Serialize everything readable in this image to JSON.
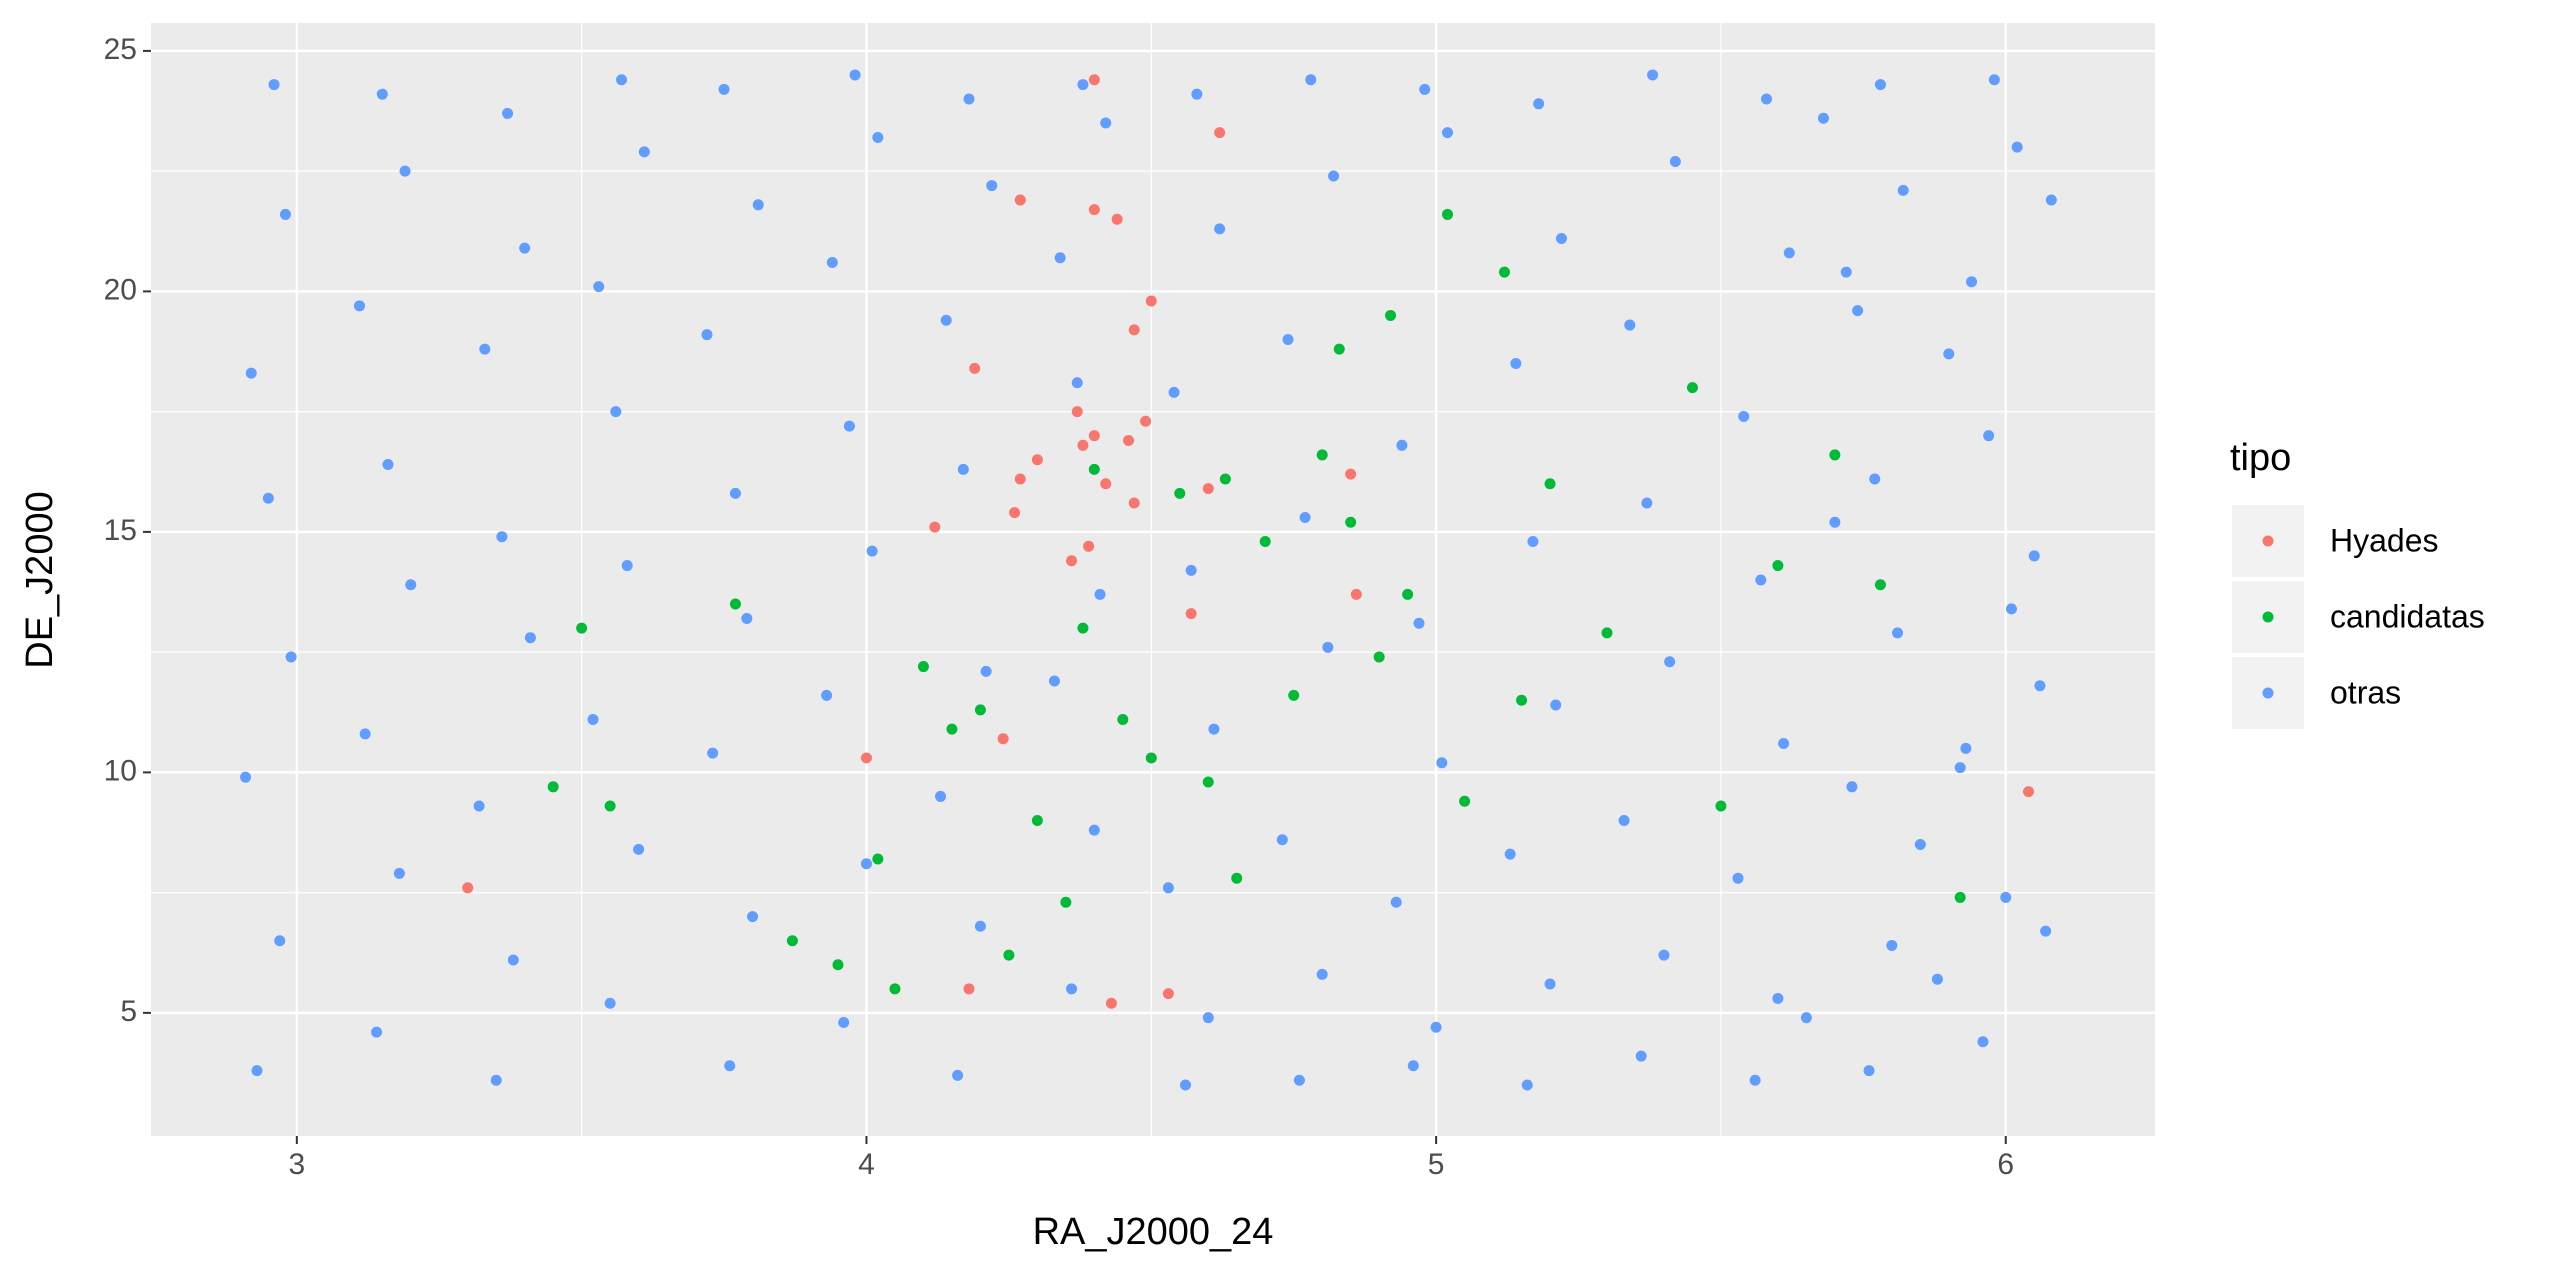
{
  "chart_data": {
    "type": "scatter",
    "x_label": "RA_J2000_24",
    "y_label": "DE_J2000",
    "legend_title": "tipo",
    "legend_position": "right",
    "grid": true,
    "xlim": [
      2.744,
      6.262
    ],
    "ylim": [
      2.44,
      25.58
    ],
    "xticks": [
      3,
      4,
      5,
      6
    ],
    "yticks": [
      5,
      10,
      15,
      20,
      25
    ],
    "series": [
      {
        "name": "Hyades",
        "color": "#F8766D",
        "x": [
          4.4,
          4.62,
          4.27,
          4.4,
          4.44,
          4.5,
          4.47,
          4.19,
          4.37,
          4.4,
          4.46,
          4.38,
          4.3,
          4.27,
          4.42,
          4.47,
          4.6,
          4.26,
          4.12,
          4.36,
          4.39,
          4.57,
          4.86,
          4.0,
          4.24,
          3.3,
          4.18,
          4.43,
          4.53,
          6.04,
          4.85,
          4.49
        ],
        "values": [
          24.4,
          23.3,
          21.9,
          21.7,
          21.5,
          19.8,
          19.2,
          18.4,
          17.5,
          17.0,
          16.9,
          16.8,
          16.5,
          16.1,
          16.0,
          15.6,
          15.9,
          15.4,
          15.1,
          14.4,
          14.7,
          13.3,
          13.7,
          10.3,
          10.7,
          7.6,
          5.5,
          5.2,
          5.4,
          9.6,
          16.2,
          17.3
        ]
      },
      {
        "name": "candidatas",
        "color": "#00BA38",
        "x": [
          3.45,
          3.5,
          3.55,
          3.77,
          3.87,
          3.95,
          4.02,
          4.05,
          4.1,
          4.15,
          4.2,
          4.25,
          4.3,
          4.35,
          4.38,
          4.4,
          4.45,
          4.5,
          4.55,
          4.6,
          4.63,
          4.65,
          4.7,
          4.75,
          4.8,
          4.83,
          4.85,
          4.9,
          4.92,
          4.95,
          5.02,
          5.05,
          5.12,
          5.15,
          5.2,
          5.3,
          5.45,
          5.5,
          5.6,
          5.7,
          5.78,
          5.92
        ],
        "values": [
          9.7,
          13.0,
          9.3,
          13.5,
          6.5,
          6.0,
          8.2,
          5.5,
          12.2,
          10.9,
          11.3,
          6.2,
          9.0,
          7.3,
          13.0,
          16.3,
          11.1,
          10.3,
          15.8,
          9.8,
          16.1,
          7.8,
          14.8,
          11.6,
          16.6,
          18.8,
          15.2,
          12.4,
          19.5,
          13.7,
          21.6,
          9.4,
          20.4,
          11.5,
          16.0,
          12.9,
          18.0,
          9.3,
          14.3,
          16.6,
          13.9,
          7.4
        ]
      },
      {
        "name": "otras",
        "color": "#619CFF",
        "x": [
          2.93,
          2.97,
          2.91,
          2.99,
          2.95,
          2.92,
          2.98,
          2.96,
          3.14,
          3.18,
          3.12,
          3.2,
          3.16,
          3.11,
          3.19,
          3.15,
          3.35,
          3.38,
          3.32,
          3.41,
          3.36,
          3.33,
          3.4,
          3.37,
          3.55,
          3.6,
          3.52,
          3.58,
          3.56,
          3.53,
          3.61,
          3.57,
          3.76,
          3.8,
          3.73,
          3.79,
          3.77,
          3.72,
          3.81,
          3.75,
          3.96,
          4.0,
          3.93,
          4.01,
          3.97,
          3.94,
          4.02,
          3.98,
          4.16,
          4.2,
          4.13,
          4.21,
          4.17,
          4.14,
          4.22,
          4.18,
          4.36,
          4.4,
          4.33,
          4.41,
          4.37,
          4.34,
          4.42,
          4.38,
          4.56,
          4.6,
          4.53,
          4.61,
          4.57,
          4.54,
          4.62,
          4.58,
          4.76,
          4.8,
          4.73,
          4.81,
          4.77,
          4.74,
          4.82,
          4.78,
          4.96,
          5.0,
          4.93,
          5.01,
          4.97,
          4.94,
          5.02,
          4.98,
          5.16,
          5.2,
          5.13,
          5.21,
          5.17,
          5.14,
          5.22,
          5.18,
          5.36,
          5.4,
          5.33,
          5.41,
          5.37,
          5.34,
          5.42,
          5.38,
          5.56,
          5.6,
          5.53,
          5.61,
          5.57,
          5.54,
          5.62,
          5.58,
          5.76,
          5.8,
          5.73,
          5.81,
          5.77,
          5.74,
          5.82,
          5.78,
          5.96,
          6.0,
          5.93,
          6.01,
          5.97,
          5.94,
          6.02,
          5.98,
          5.65,
          5.85,
          6.06,
          5.7,
          5.9,
          6.08,
          5.68,
          5.88,
          6.05,
          5.72,
          5.92,
          6.07
        ],
        "values": [
          3.8,
          6.5,
          9.9,
          12.4,
          15.7,
          18.3,
          21.6,
          24.3,
          4.6,
          7.9,
          10.8,
          13.9,
          16.4,
          19.7,
          22.5,
          24.1,
          3.6,
          6.1,
          9.3,
          12.8,
          14.9,
          18.8,
          20.9,
          23.7,
          5.2,
          8.4,
          11.1,
          14.3,
          17.5,
          20.1,
          22.9,
          24.4,
          3.9,
          7.0,
          10.4,
          13.2,
          15.8,
          19.1,
          21.8,
          24.2,
          4.8,
          8.1,
          11.6,
          14.6,
          17.2,
          20.6,
          23.2,
          24.5,
          3.7,
          6.8,
          9.5,
          12.1,
          16.3,
          19.4,
          22.2,
          24.0,
          5.5,
          8.8,
          11.9,
          13.7,
          18.1,
          20.7,
          23.5,
          24.3,
          3.5,
          4.9,
          7.6,
          10.9,
          14.2,
          17.9,
          21.3,
          24.1,
          3.6,
          5.8,
          8.6,
          12.6,
          15.3,
          19.0,
          22.4,
          24.4,
          3.9,
          4.7,
          7.3,
          10.2,
          13.1,
          16.8,
          23.3,
          24.2,
          3.5,
          5.6,
          8.3,
          11.4,
          14.8,
          18.5,
          21.1,
          23.9,
          4.1,
          6.2,
          9.0,
          12.3,
          15.6,
          19.3,
          22.7,
          24.5,
          3.6,
          5.3,
          7.8,
          10.6,
          14.0,
          17.4,
          20.8,
          24.0,
          3.8,
          6.4,
          9.7,
          12.9,
          16.1,
          19.6,
          22.1,
          24.3,
          4.4,
          7.4,
          10.5,
          13.4,
          17.0,
          20.2,
          23.0,
          24.4,
          4.9,
          8.5,
          11.8,
          15.2,
          18.7,
          21.9,
          23.6,
          5.7,
          14.5,
          20.4,
          10.1,
          6.7
        ]
      }
    ]
  }
}
